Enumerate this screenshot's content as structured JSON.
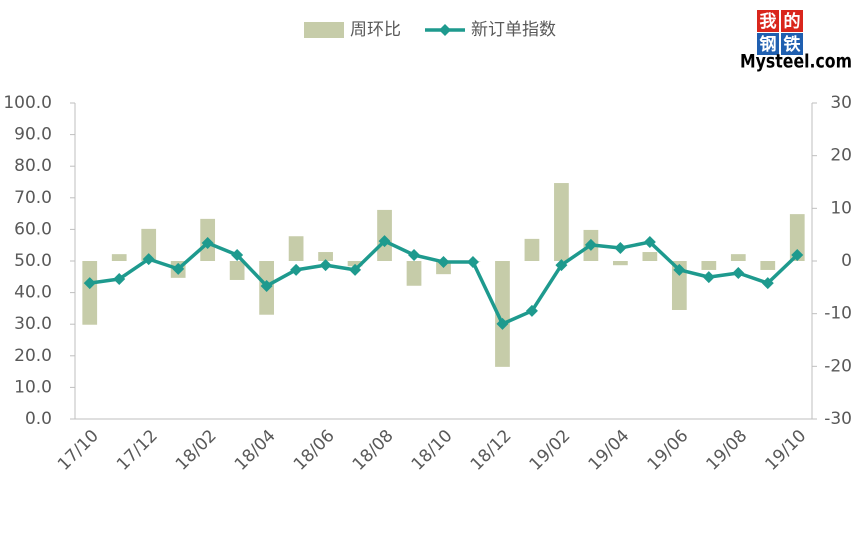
{
  "chart_data": {
    "type": "bar-line",
    "logo": {
      "characters": [
        "我",
        "的",
        "钢",
        "铁"
      ],
      "text": "Mysteel.com"
    },
    "categories": [
      "17/10",
      null,
      "17/12",
      null,
      "18/02",
      null,
      "18/04",
      null,
      "18/06",
      null,
      "18/08",
      null,
      "18/10",
      null,
      "18/12",
      null,
      "19/02",
      null,
      "19/04",
      null,
      "19/06",
      null,
      "19/08",
      null,
      "19/10"
    ],
    "series": [
      {
        "name": "周环比",
        "type": "bar",
        "axis": "y2",
        "color": "#c6cca9",
        "values": [
          -12.1,
          1.3,
          6.1,
          -3.2,
          8.0,
          -3.6,
          -10.2,
          4.7,
          1.7,
          -1.0,
          9.7,
          -4.7,
          -2.5,
          0,
          -20.1,
          4.2,
          14.8,
          5.9,
          -0.8,
          1.7,
          -9.3,
          -1.7,
          1.3,
          -1.7,
          8.9
        ]
      },
      {
        "name": "新订单指数",
        "type": "line",
        "axis": "y",
        "color": "#1e9a8e",
        "values": [
          43.0,
          44.3,
          50.6,
          47.5,
          55.7,
          51.9,
          42.1,
          47.2,
          48.7,
          47.2,
          56.3,
          51.9,
          49.7,
          49.7,
          30.1,
          34.2,
          48.7,
          55.1,
          54.1,
          56.0,
          47.2,
          44.9,
          46.2,
          43.0,
          51.9
        ]
      }
    ],
    "ylim": [
      0,
      100
    ],
    "yticks": [
      {
        "value": 0,
        "label": "0.0"
      },
      {
        "value": 10,
        "label": "10.0"
      },
      {
        "value": 20,
        "label": "20.0"
      },
      {
        "value": 30,
        "label": "30.0"
      },
      {
        "value": 40,
        "label": "40.0"
      },
      {
        "value": 50,
        "label": "50.0"
      },
      {
        "value": 60,
        "label": "60.0"
      },
      {
        "value": 70,
        "label": "70.0"
      },
      {
        "value": 80,
        "label": "80.0"
      },
      {
        "value": 90,
        "label": "90.0"
      },
      {
        "value": 100,
        "label": "100.0"
      }
    ],
    "y2lim": [
      -30,
      30
    ],
    "y2ticks": [
      -30,
      -20,
      -10,
      0,
      10,
      20,
      30
    ],
    "legend": "top"
  }
}
